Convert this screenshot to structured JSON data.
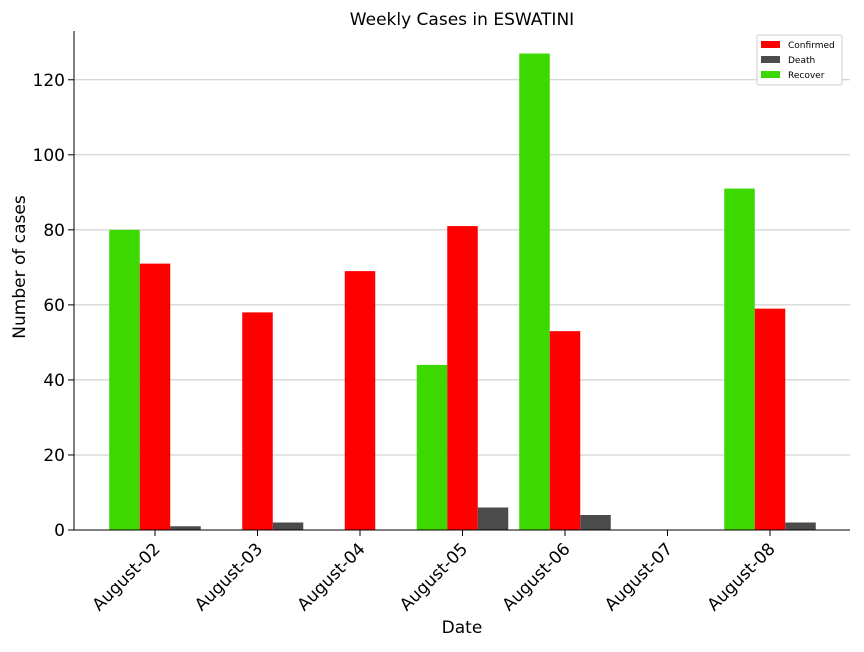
{
  "chart_data": {
    "type": "bar",
    "title": "Weekly Cases in ESWATINI",
    "xlabel": "Date",
    "ylabel": "Number of cases",
    "categories": [
      "August-02",
      "August-03",
      "August-04",
      "August-05",
      "August-06",
      "August-07",
      "August-08"
    ],
    "series": [
      {
        "name": "Recover",
        "color": "#3cd800",
        "values": [
          80,
          0,
          0,
          44,
          127,
          0,
          91
        ]
      },
      {
        "name": "Confirmed",
        "color": "#ff0000",
        "values": [
          71,
          58,
          69,
          81,
          53,
          0,
          59
        ]
      },
      {
        "name": "Death",
        "color": "#4b4b4b",
        "values": [
          1,
          2,
          0,
          6,
          4,
          0,
          2
        ]
      }
    ],
    "legend_order": [
      "Confirmed",
      "Death",
      "Recover"
    ],
    "ylim": [
      0,
      133
    ],
    "yticks": [
      0,
      20,
      40,
      60,
      80,
      100,
      120
    ],
    "grid": "horizontal",
    "legend_position": "top-right"
  }
}
